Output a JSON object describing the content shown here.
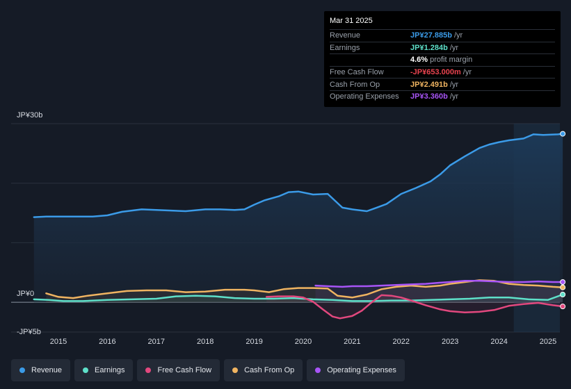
{
  "tooltip": {
    "date": "Mar 31 2025",
    "rows": [
      {
        "label": "Revenue",
        "value": "JP¥27.885b",
        "unit": "/yr",
        "color": "#3b9be8"
      },
      {
        "label": "Earnings",
        "value": "JP¥1.284b",
        "unit": "/yr",
        "color": "#5ee0c9"
      },
      {
        "label": "",
        "value": "4.6%",
        "unit": "profit margin",
        "color": "#ffffff"
      },
      {
        "label": "Free Cash Flow",
        "value": "-JP¥653.000m",
        "unit": "/yr",
        "color": "#e8434f"
      },
      {
        "label": "Cash From Op",
        "value": "JP¥2.491b",
        "unit": "/yr",
        "color": "#f0b461"
      },
      {
        "label": "Operating Expenses",
        "value": "JP¥3.360b",
        "unit": "/yr",
        "color": "#a855f7"
      }
    ]
  },
  "chart_data": {
    "type": "line",
    "ylim": [
      -5,
      30
    ],
    "y_tick_labels": [
      {
        "label": "JP¥30b",
        "value": 30
      },
      {
        "label": "JP¥0",
        "value": 0
      },
      {
        "label": "-JP¥5b",
        "value": -5
      }
    ],
    "xlim": [
      2014.6,
      2025.3
    ],
    "x_ticks": [
      2015,
      2016,
      2017,
      2018,
      2019,
      2020,
      2021,
      2022,
      2023,
      2024,
      2025
    ],
    "x_tick_labels": [
      "2015",
      "2016",
      "2017",
      "2018",
      "2019",
      "2020",
      "2021",
      "2022",
      "2023",
      "2024",
      "2025"
    ],
    "forecast_start": 2024.3,
    "series": [
      {
        "name": "Revenue",
        "color": "#3b9be8",
        "fill": true,
        "x": [
          2014.5,
          2014.75,
          2015.0,
          2015.3,
          2015.7,
          2016.0,
          2016.3,
          2016.7,
          2017.0,
          2017.3,
          2017.6,
          2018.0,
          2018.3,
          2018.6,
          2018.8,
          2019.0,
          2019.2,
          2019.5,
          2019.7,
          2019.9,
          2020.2,
          2020.5,
          2020.8,
          2021.0,
          2021.3,
          2021.5,
          2021.7,
          2022.0,
          2022.3,
          2022.6,
          2022.8,
          2023.0,
          2023.3,
          2023.6,
          2023.8,
          2024.0,
          2024.2,
          2024.5,
          2024.7,
          2024.9,
          2025.2,
          2025.3
        ],
        "y": [
          14.3,
          14.4,
          14.4,
          14.4,
          14.4,
          14.6,
          15.2,
          15.6,
          15.5,
          15.4,
          15.3,
          15.6,
          15.6,
          15.5,
          15.6,
          16.4,
          17.1,
          17.8,
          18.5,
          18.6,
          18.1,
          18.2,
          15.9,
          15.6,
          15.3,
          15.9,
          16.5,
          18.2,
          19.2,
          20.3,
          21.5,
          23.0,
          24.5,
          25.9,
          26.5,
          26.9,
          27.2,
          27.5,
          28.2,
          28.1,
          28.2,
          28.3
        ]
      },
      {
        "name": "Earnings",
        "color": "#5ee0c9",
        "fill": false,
        "x": [
          2014.5,
          2014.8,
          2015.1,
          2015.5,
          2016.0,
          2016.5,
          2017.0,
          2017.4,
          2017.8,
          2018.2,
          2018.6,
          2019.0,
          2019.4,
          2019.8,
          2020.2,
          2020.6,
          2021.0,
          2021.4,
          2021.8,
          2022.2,
          2022.6,
          2023.0,
          2023.4,
          2023.8,
          2024.2,
          2024.6,
          2025.0,
          2025.3
        ],
        "y": [
          0.5,
          0.4,
          0.2,
          0.2,
          0.4,
          0.5,
          0.6,
          1.0,
          1.1,
          1.0,
          0.7,
          0.6,
          0.6,
          0.7,
          0.5,
          0.4,
          0.2,
          0.2,
          0.3,
          0.3,
          0.4,
          0.5,
          0.6,
          0.8,
          0.8,
          0.5,
          0.4,
          1.3
        ]
      },
      {
        "name": "Free Cash Flow",
        "color": "#e2487e",
        "fill": false,
        "x": [
          2019.25,
          2019.5,
          2019.8,
          2020.0,
          2020.2,
          2020.4,
          2020.6,
          2020.75,
          2021.0,
          2021.2,
          2021.4,
          2021.6,
          2021.8,
          2022.0,
          2022.2,
          2022.5,
          2022.8,
          2023.0,
          2023.3,
          2023.6,
          2023.9,
          2024.2,
          2024.5,
          2024.8,
          2025.1,
          2025.3
        ],
        "y": [
          0.9,
          1.0,
          1.0,
          0.8,
          0.1,
          -1.2,
          -2.4,
          -2.7,
          -2.3,
          -1.4,
          0.0,
          1.2,
          1.1,
          0.8,
          0.3,
          -0.5,
          -1.2,
          -1.5,
          -1.7,
          -1.6,
          -1.3,
          -0.6,
          -0.3,
          -0.1,
          -0.5,
          -0.7
        ]
      },
      {
        "name": "Cash From Op",
        "color": "#f0b461",
        "fill": false,
        "x": [
          2014.75,
          2015.0,
          2015.3,
          2015.6,
          2016.0,
          2016.4,
          2016.8,
          2017.2,
          2017.6,
          2018.0,
          2018.4,
          2018.8,
          2019.0,
          2019.3,
          2019.6,
          2019.9,
          2020.2,
          2020.5,
          2020.7,
          2021.0,
          2021.3,
          2021.6,
          2021.9,
          2022.2,
          2022.5,
          2022.8,
          2023.0,
          2023.3,
          2023.6,
          2023.9,
          2024.2,
          2024.5,
          2024.8,
          2025.1,
          2025.3
        ],
        "y": [
          1.5,
          0.9,
          0.7,
          1.1,
          1.5,
          1.9,
          2.0,
          2.0,
          1.7,
          1.8,
          2.1,
          2.1,
          2.0,
          1.7,
          2.2,
          2.4,
          2.4,
          2.3,
          1.1,
          0.8,
          1.3,
          2.2,
          2.6,
          2.8,
          2.6,
          2.8,
          3.1,
          3.4,
          3.7,
          3.6,
          3.1,
          2.9,
          2.8,
          2.6,
          2.5
        ]
      },
      {
        "name": "Operating Expenses",
        "color": "#a855f7",
        "fill": false,
        "x": [
          2020.25,
          2020.5,
          2020.8,
          2021.0,
          2021.3,
          2021.6,
          2021.9,
          2022.2,
          2022.5,
          2022.8,
          2023.0,
          2023.3,
          2023.6,
          2023.9,
          2024.2,
          2024.5,
          2024.8,
          2025.1,
          2025.3
        ],
        "y": [
          2.8,
          2.7,
          2.6,
          2.7,
          2.7,
          2.8,
          2.9,
          3.0,
          3.1,
          3.3,
          3.4,
          3.6,
          3.6,
          3.5,
          3.4,
          3.4,
          3.5,
          3.4,
          3.4
        ]
      }
    ]
  },
  "legend": [
    {
      "label": "Revenue",
      "color": "#3b9be8"
    },
    {
      "label": "Earnings",
      "color": "#5ee0c9"
    },
    {
      "label": "Free Cash Flow",
      "color": "#e2487e"
    },
    {
      "label": "Cash From Op",
      "color": "#f0b461"
    },
    {
      "label": "Operating Expenses",
      "color": "#a855f7"
    }
  ]
}
